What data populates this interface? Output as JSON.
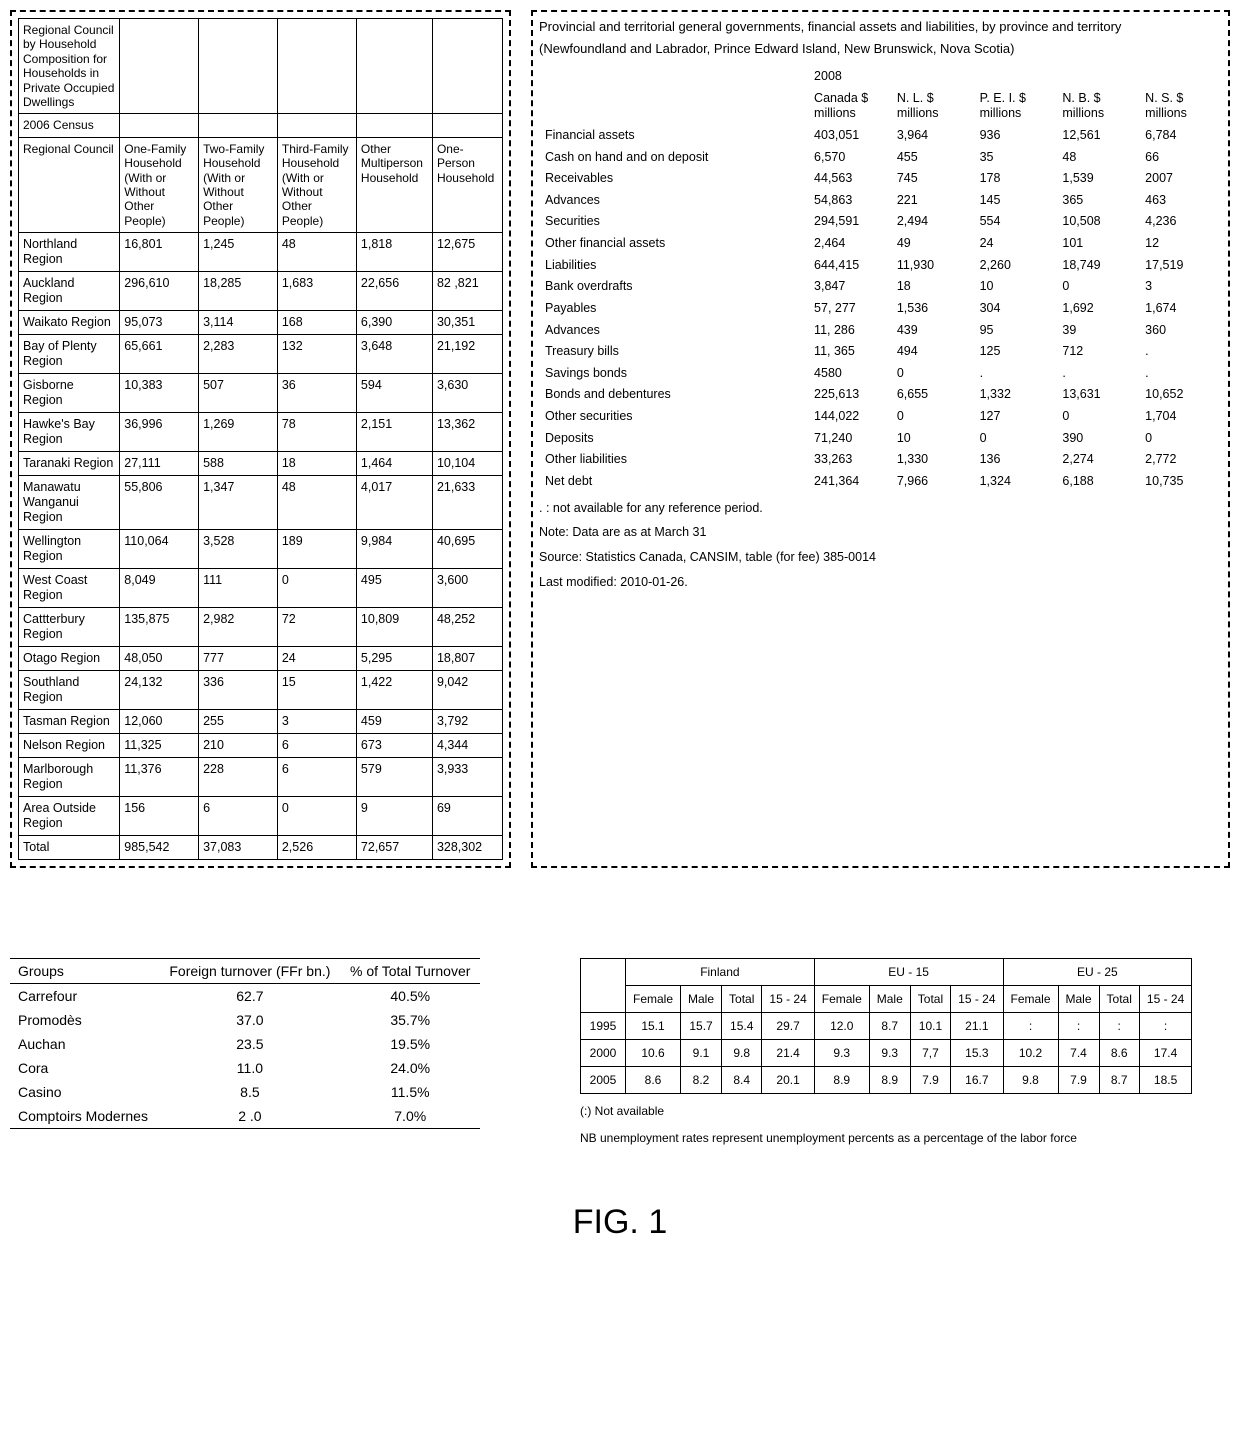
{
  "table1": {
    "title": "Regional Council by Household Composition for Households in Private Occupied Dwellings",
    "subtitle": "2006 Census",
    "cols": [
      "Regional Council",
      "One-Family Household (With or Without Other People)",
      "Two-Family Household (With or Without Other People)",
      "Third-Family Household (With or Without Other People)",
      "Other Multiperson Household",
      "One-Person Household"
    ],
    "rows": [
      [
        "Northland Region",
        "16,801",
        "1,245",
        "48",
        "1,818",
        "12,675"
      ],
      [
        "Auckland Region",
        "296,610",
        "18,285",
        "1,683",
        "22,656",
        "82 ,821"
      ],
      [
        "Waikato Region",
        "95,073",
        "3,114",
        "168",
        "6,390",
        "30,351"
      ],
      [
        "Bay of Plenty Region",
        "65,661",
        "2,283",
        "132",
        "3,648",
        "21,192"
      ],
      [
        "Gisborne Region",
        "10,383",
        "507",
        "36",
        "594",
        "3,630"
      ],
      [
        "Hawke's Bay Region",
        "36,996",
        "1,269",
        "78",
        "2,151",
        "13,362"
      ],
      [
        "Taranaki Region",
        "27,111",
        "588",
        "18",
        "1,464",
        "10,104"
      ],
      [
        "Manawatu Wanganui Region",
        "55,806",
        "1,347",
        "48",
        "4,017",
        "21,633"
      ],
      [
        "Wellington Region",
        "110,064",
        "3,528",
        "189",
        "9,984",
        "40,695"
      ],
      [
        "West Coast Region",
        "8,049",
        "111",
        "0",
        "495",
        "3,600"
      ],
      [
        "Cattterbury Region",
        "135,875",
        "2,982",
        "72",
        "10,809",
        "48,252"
      ],
      [
        "Otago Region",
        "48,050",
        "777",
        "24",
        "5,295",
        "18,807"
      ],
      [
        "Southland Region",
        "24,132",
        "336",
        "15",
        "1,422",
        "9,042"
      ],
      [
        "Tasman Region",
        "12,060",
        "255",
        "3",
        "459",
        "3,792"
      ],
      [
        "Nelson Region",
        "11,325",
        "210",
        "6",
        "673",
        "4,344"
      ],
      [
        "Marlborough Region",
        "11,376",
        "228",
        "6",
        "579",
        "3,933"
      ],
      [
        "Area Outside Region",
        "156",
        "6",
        "0",
        "9",
        "69"
      ],
      [
        "Total",
        "985,542",
        "37,083",
        "2,526",
        "72,657",
        "328,302"
      ]
    ]
  },
  "table2": {
    "title": "Provincial and territorial general governments, financial assets and liabilities, by province and territory",
    "subtitle": "(Newfoundland and Labrador, Prince Edward Island, New Brunswick, Nova Scotia)",
    "year": "2008",
    "colheads": [
      [
        "Canada $",
        "millions"
      ],
      [
        "N. L. $",
        "millions"
      ],
      [
        "P. E. I. $",
        "millions"
      ],
      [
        "N. B. $",
        "millions"
      ],
      [
        "N. S. $",
        "millions"
      ]
    ],
    "rows": [
      [
        "Financial assets",
        "403,051",
        "3,964",
        "936",
        "12,561",
        "6,784"
      ],
      [
        "Cash on hand and on deposit",
        "6,570",
        "455",
        "35",
        "48",
        "66"
      ],
      [
        "Receivables",
        "44,563",
        "745",
        "178",
        "1,539",
        "2007"
      ],
      [
        "Advances",
        "54,863",
        "221",
        "145",
        "365",
        "463"
      ],
      [
        "Securities",
        "294,591",
        "2,494",
        "554",
        "10,508",
        "4,236"
      ],
      [
        "Other financial assets",
        "2,464",
        "49",
        "24",
        "101",
        "12"
      ],
      [
        "Liabilities",
        "644,415",
        "11,930",
        "2,260",
        "18,749",
        "17,519"
      ],
      [
        "Bank overdrafts",
        "3,847",
        "18",
        "10",
        "0",
        "3"
      ],
      [
        "Payables",
        "57, 277",
        "1,536",
        "304",
        "1,692",
        "1,674"
      ],
      [
        "Advances",
        "11, 286",
        "439",
        "95",
        "39",
        "360"
      ],
      [
        "Treasury bills",
        "11, 365",
        "494",
        "125",
        "712",
        "."
      ],
      [
        "Savings bonds",
        "4580",
        "0",
        ".",
        ".",
        "."
      ],
      [
        "Bonds and debentures",
        "225,613",
        "6,655",
        "1,332",
        "13,631",
        "10,652"
      ],
      [
        "Other securities",
        "144,022",
        "0",
        "127",
        "0",
        "1,704"
      ],
      [
        "Deposits",
        "71,240",
        "10",
        "0",
        "390",
        "0"
      ],
      [
        "Other liabilities",
        "33,263",
        "1,330",
        "136",
        "2,274",
        "2,772"
      ],
      [
        "Net debt",
        "241,364",
        "7,966",
        "1,324",
        "6,188",
        "10,735"
      ]
    ],
    "notes": [
      ". : not available for any reference period.",
      "Note: Data are as at March 31",
      "Source: Statistics Canada, CANSIM, table (for fee) 385-0014",
      "Last modified: 2010-01-26."
    ]
  },
  "table3": {
    "cols": [
      "Groups",
      "Foreign turnover (FFr bn.)",
      "% of Total Turnover"
    ],
    "rows": [
      [
        "Carrefour",
        "62.7",
        "40.5%"
      ],
      [
        "Promodès",
        "37.0",
        "35.7%"
      ],
      [
        "Auchan",
        "23.5",
        "19.5%"
      ],
      [
        "Cora",
        "11.0",
        "24.0%"
      ],
      [
        "Casino",
        "8.5",
        "11.5%"
      ],
      [
        "Comptoirs Modernes",
        "2 .0",
        "7.0%"
      ]
    ]
  },
  "table4": {
    "groups": [
      "Finland",
      "EU - 15",
      "EU - 25"
    ],
    "subcols": [
      "Female",
      "Male",
      "Total",
      "15 - 24"
    ],
    "rows": [
      [
        "1995",
        "15.1",
        "15.7",
        "15.4",
        "29.7",
        "12.0",
        "8.7",
        "10.1",
        "21.1",
        ":",
        ":",
        ":",
        ":"
      ],
      [
        "2000",
        "10.6",
        "9.1",
        "9.8",
        "21.4",
        "9.3",
        "9.3",
        "7,7",
        "15.3",
        "10.2",
        "7.4",
        "8.6",
        "17.4"
      ],
      [
        "2005",
        "8.6",
        "8.2",
        "8.4",
        "20.1",
        "8.9",
        "8.9",
        "7.9",
        "16.7",
        "9.8",
        "7.9",
        "8.7",
        "18.5"
      ]
    ],
    "notes": [
      "(:) Not available",
      "NB unemployment rates represent unemployment percents as a percentage of the labor force"
    ]
  },
  "figure": "FIG. 1"
}
